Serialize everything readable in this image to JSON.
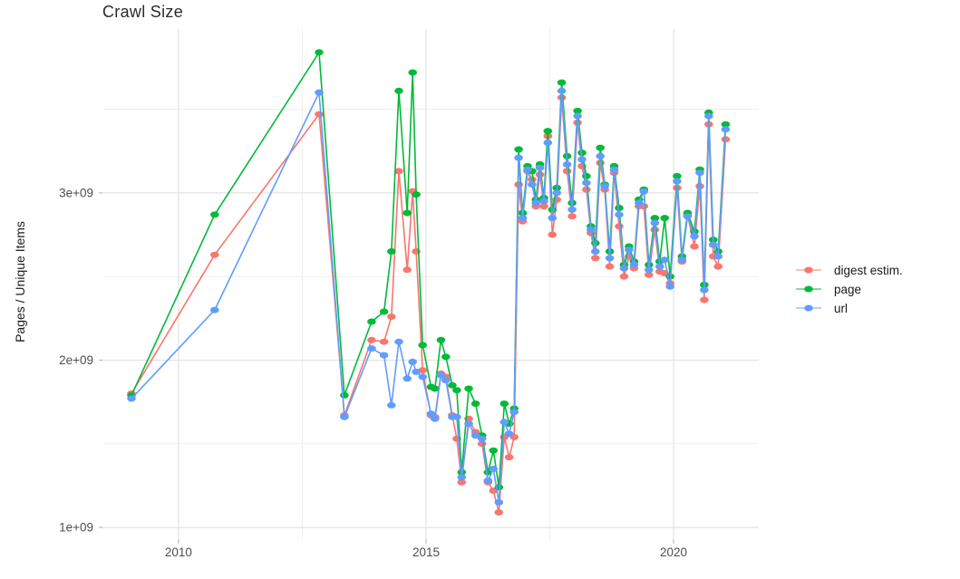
{
  "chart_data": {
    "type": "line",
    "title": "Crawl Size",
    "xlabel": "",
    "ylabel": "Pages / Unique Items",
    "values_unit": "pages (multiples of 1e+09)",
    "background": "#FFFFFF",
    "grid": {
      "major_color": "#E3E3E3",
      "minor_color": "#EFEFEF",
      "on": true
    },
    "legend_position": "right",
    "x_range": [
      2008.5,
      2021.72
    ],
    "y_range": [
      0.93,
      3.98
    ],
    "x_ticks": [
      {
        "value": 2010,
        "label": "2010"
      },
      {
        "value": 2015,
        "label": "2015"
      },
      {
        "value": 2020,
        "label": "2020"
      }
    ],
    "y_ticks": [
      {
        "value": 1,
        "label": "1e+09"
      },
      {
        "value": 2,
        "label": "2e+09"
      },
      {
        "value": 3,
        "label": "3e+09"
      }
    ],
    "x_minor": [
      2012.5,
      2017.5
    ],
    "y_minor": [
      1.5,
      2.5,
      3.5
    ],
    "x": [
      2009.05,
      2010.73,
      2012.84,
      2013.35,
      2013.9,
      2014.15,
      2014.3,
      2014.45,
      2014.62,
      2014.73,
      2014.8,
      2014.93,
      2015.1,
      2015.18,
      2015.3,
      2015.4,
      2015.53,
      2015.62,
      2015.72,
      2015.86,
      2016.0,
      2016.13,
      2016.25,
      2016.36,
      2016.47,
      2016.58,
      2016.68,
      2016.78,
      2016.87,
      2016.95,
      2017.05,
      2017.14,
      2017.22,
      2017.3,
      2017.38,
      2017.46,
      2017.55,
      2017.64,
      2017.74,
      2017.85,
      2017.95,
      2018.06,
      2018.15,
      2018.24,
      2018.33,
      2018.42,
      2018.52,
      2018.61,
      2018.71,
      2018.8,
      2018.9,
      2019.0,
      2019.1,
      2019.2,
      2019.3,
      2019.4,
      2019.5,
      2019.62,
      2019.72,
      2019.82,
      2019.93,
      2020.07,
      2020.17,
      2020.28,
      2020.42,
      2020.53,
      2020.62,
      2020.71,
      2020.8,
      2020.9,
      2021.05
    ],
    "series": [
      {
        "name": "digest estim.",
        "color": "#F8766D",
        "values": [
          1.8,
          2.63,
          3.47,
          1.67,
          2.12,
          2.11,
          2.26,
          3.13,
          2.54,
          3.01,
          2.65,
          1.94,
          1.67,
          1.66,
          1.92,
          1.9,
          1.67,
          1.53,
          1.27,
          1.65,
          1.57,
          1.5,
          1.27,
          1.22,
          1.09,
          1.54,
          1.42,
          1.54,
          3.05,
          2.83,
          3.13,
          3.08,
          2.92,
          3.11,
          2.92,
          3.34,
          2.75,
          2.96,
          3.57,
          3.13,
          2.86,
          3.42,
          3.16,
          3.02,
          2.76,
          2.61,
          3.18,
          3.02,
          2.56,
          3.12,
          2.8,
          2.5,
          2.62,
          2.55,
          2.92,
          2.92,
          2.51,
          2.78,
          2.53,
          2.52,
          2.46,
          3.03,
          2.59,
          2.87,
          2.68,
          3.04,
          2.36,
          3.41,
          2.62,
          2.56,
          3.32
        ]
      },
      {
        "name": "page",
        "color": "#00BA38",
        "values": [
          1.79,
          2.87,
          3.84,
          1.79,
          2.23,
          2.29,
          2.65,
          3.61,
          2.88,
          3.72,
          2.99,
          2.09,
          1.84,
          1.83,
          2.12,
          2.02,
          1.85,
          1.82,
          1.33,
          1.83,
          1.74,
          1.55,
          1.33,
          1.46,
          1.24,
          1.74,
          1.62,
          1.71,
          3.26,
          2.88,
          3.16,
          3.13,
          2.96,
          3.17,
          2.97,
          3.37,
          2.9,
          3.03,
          3.66,
          3.22,
          2.94,
          3.49,
          3.24,
          3.1,
          2.8,
          2.7,
          3.27,
          3.05,
          2.65,
          3.16,
          2.91,
          2.57,
          2.68,
          2.59,
          2.96,
          3.02,
          2.57,
          2.85,
          2.59,
          2.85,
          2.5,
          3.1,
          2.62,
          2.88,
          2.77,
          3.14,
          2.45,
          3.48,
          2.72,
          2.65,
          3.41
        ]
      },
      {
        "name": "url",
        "color": "#619CFF",
        "values": [
          1.77,
          2.3,
          3.6,
          1.66,
          2.07,
          2.03,
          1.73,
          2.11,
          1.89,
          1.99,
          1.93,
          1.9,
          1.68,
          1.65,
          1.91,
          1.88,
          1.66,
          1.66,
          1.3,
          1.62,
          1.55,
          1.53,
          1.28,
          1.35,
          1.15,
          1.63,
          1.56,
          1.69,
          3.21,
          2.85,
          3.14,
          3.05,
          2.94,
          3.15,
          2.95,
          3.3,
          2.85,
          3.0,
          3.61,
          3.17,
          2.9,
          3.46,
          3.2,
          3.06,
          2.78,
          2.65,
          3.22,
          3.04,
          2.61,
          3.14,
          2.87,
          2.55,
          2.66,
          2.57,
          2.94,
          3.01,
          2.54,
          2.82,
          2.56,
          2.6,
          2.44,
          3.07,
          2.6,
          2.86,
          2.74,
          3.12,
          2.42,
          3.46,
          2.69,
          2.62,
          3.38
        ]
      }
    ],
    "style": {
      "tick_label_color": "#4D4D4D",
      "tick_mark_color": "#BEBEBE",
      "point_rx": 4.8,
      "point_ry": 3.5,
      "line_width": 1.6
    }
  }
}
